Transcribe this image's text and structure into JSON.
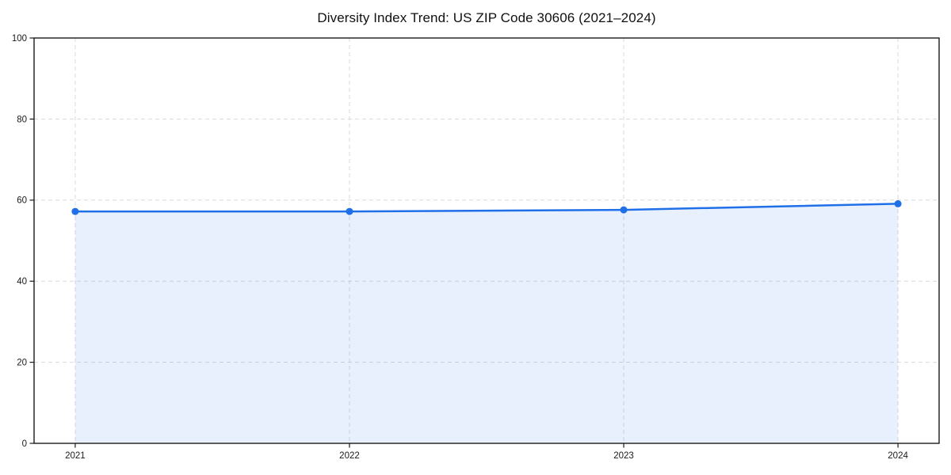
{
  "chart_data": {
    "type": "line",
    "title": "Diversity Index Trend: US ZIP Code 30606 (2021–2024)",
    "x": [
      2021,
      2022,
      2023,
      2024
    ],
    "series": [
      {
        "name": "Diversity Index",
        "values": [
          57.2,
          57.2,
          57.6,
          59.1
        ]
      }
    ],
    "xlabel": "",
    "ylabel": "",
    "ylim": [
      0,
      100
    ],
    "yticks": [
      0,
      20,
      40,
      60,
      80,
      100
    ],
    "grid": true,
    "grid_style": "dashed",
    "legend": "none",
    "area_fill": true,
    "colors": {
      "line": "#1f6fe8",
      "marker": "#1f6fe8",
      "fill": "#1f6fe8",
      "fill_opacity": 0.1,
      "grid": "#d9d9d9",
      "frame": "#1a1a1a",
      "tick_label": "#1a1a1a",
      "plot_background": "#ffffff",
      "figure_background": "#ffffff"
    }
  }
}
